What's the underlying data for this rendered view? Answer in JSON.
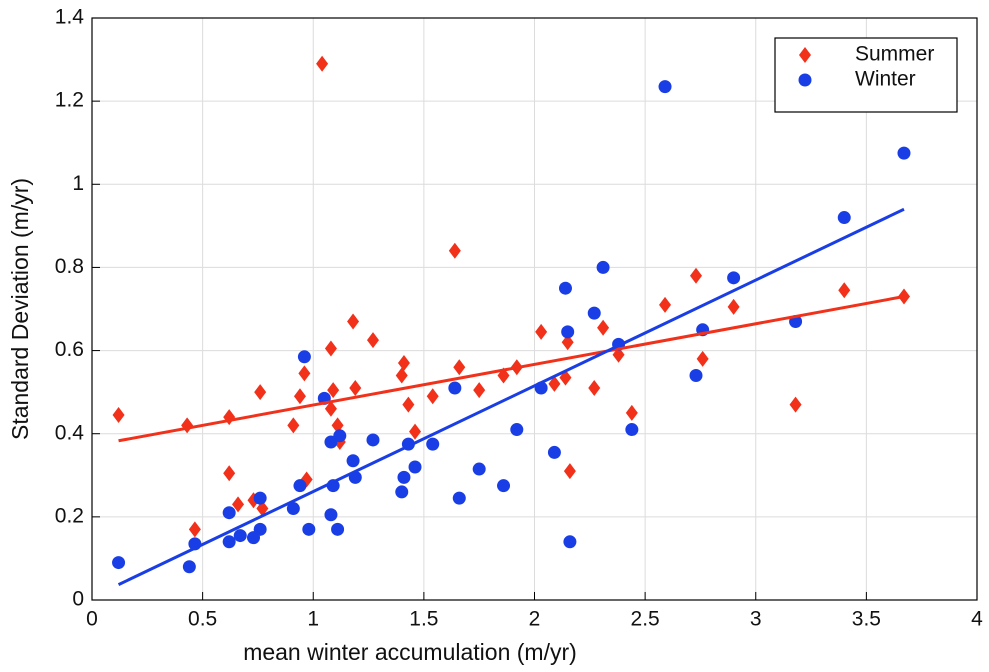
{
  "chart_data": {
    "type": "scatter",
    "xlabel": "mean winter accumulation (m/yr)",
    "ylabel": "Standard Deviation (m/yr)",
    "xlim": [
      0,
      4
    ],
    "xticks": [
      0,
      0.5,
      1,
      1.5,
      2,
      2.5,
      3,
      3.5,
      4
    ],
    "ylim": [
      0,
      1.4
    ],
    "yticks": [
      0,
      0.2,
      0.4,
      0.6,
      0.8,
      1,
      1.2,
      1.4
    ],
    "grid": true,
    "legend": "upper right",
    "series": [
      {
        "name": "Summer",
        "color": "#f2311b",
        "marker": "diamond",
        "x": [
          0.12,
          0.43,
          0.465,
          0.62,
          0.62,
          0.66,
          0.73,
          0.76,
          0.77,
          0.91,
          0.94,
          0.96,
          0.97,
          1.04,
          1.08,
          1.08,
          1.09,
          1.11,
          1.12,
          1.18,
          1.19,
          1.27,
          1.4,
          1.41,
          1.43,
          1.46,
          1.54,
          1.64,
          1.66,
          1.75,
          1.86,
          1.92,
          2.03,
          2.09,
          2.14,
          2.15,
          2.16,
          2.27,
          2.31,
          2.38,
          2.44,
          2.59,
          2.73,
          2.76,
          2.9,
          3.18,
          3.4,
          3.67
        ],
        "values": [
          0.445,
          0.42,
          0.17,
          0.44,
          0.305,
          0.23,
          0.24,
          0.5,
          0.22,
          0.42,
          0.49,
          0.545,
          0.29,
          1.29,
          0.605,
          0.46,
          0.505,
          0.42,
          0.38,
          0.67,
          0.51,
          0.625,
          0.54,
          0.57,
          0.47,
          0.405,
          0.49,
          0.84,
          0.56,
          0.505,
          0.54,
          0.56,
          0.645,
          0.52,
          0.535,
          0.62,
          0.31,
          0.51,
          0.655,
          0.59,
          0.45,
          0.71,
          0.78,
          0.58,
          0.705,
          0.47,
          0.745,
          0.73
        ],
        "fit": {
          "x": [
            0.12,
            3.67
          ],
          "values": [
            0.383,
            0.73
          ]
        }
      },
      {
        "name": "Winter",
        "color": "#1a3ee6",
        "marker": "circle",
        "x": [
          0.12,
          0.44,
          0.465,
          0.62,
          0.62,
          0.67,
          0.73,
          0.76,
          0.76,
          0.91,
          0.94,
          0.96,
          0.98,
          1.05,
          1.08,
          1.08,
          1.09,
          1.11,
          1.12,
          1.18,
          1.19,
          1.27,
          1.4,
          1.41,
          1.43,
          1.46,
          1.54,
          1.64,
          1.66,
          1.75,
          1.86,
          1.92,
          2.03,
          2.09,
          2.14,
          2.15,
          2.16,
          2.27,
          2.31,
          2.38,
          2.44,
          2.59,
          2.73,
          2.76,
          2.9,
          3.18,
          3.4,
          3.67
        ],
        "values": [
          0.09,
          0.08,
          0.135,
          0.21,
          0.14,
          0.155,
          0.15,
          0.245,
          0.17,
          0.22,
          0.275,
          0.585,
          0.17,
          0.485,
          0.38,
          0.205,
          0.275,
          0.17,
          0.395,
          0.335,
          0.295,
          0.385,
          0.26,
          0.295,
          0.375,
          0.32,
          0.375,
          0.51,
          0.245,
          0.315,
          0.275,
          0.41,
          0.51,
          0.355,
          0.75,
          0.645,
          0.14,
          0.69,
          0.8,
          0.615,
          0.41,
          1.235,
          0.54,
          0.65,
          0.775,
          0.67,
          0.92,
          1.075
        ],
        "fit": {
          "x": [
            0.12,
            3.67
          ],
          "values": [
            0.037,
            0.94
          ]
        }
      }
    ]
  }
}
